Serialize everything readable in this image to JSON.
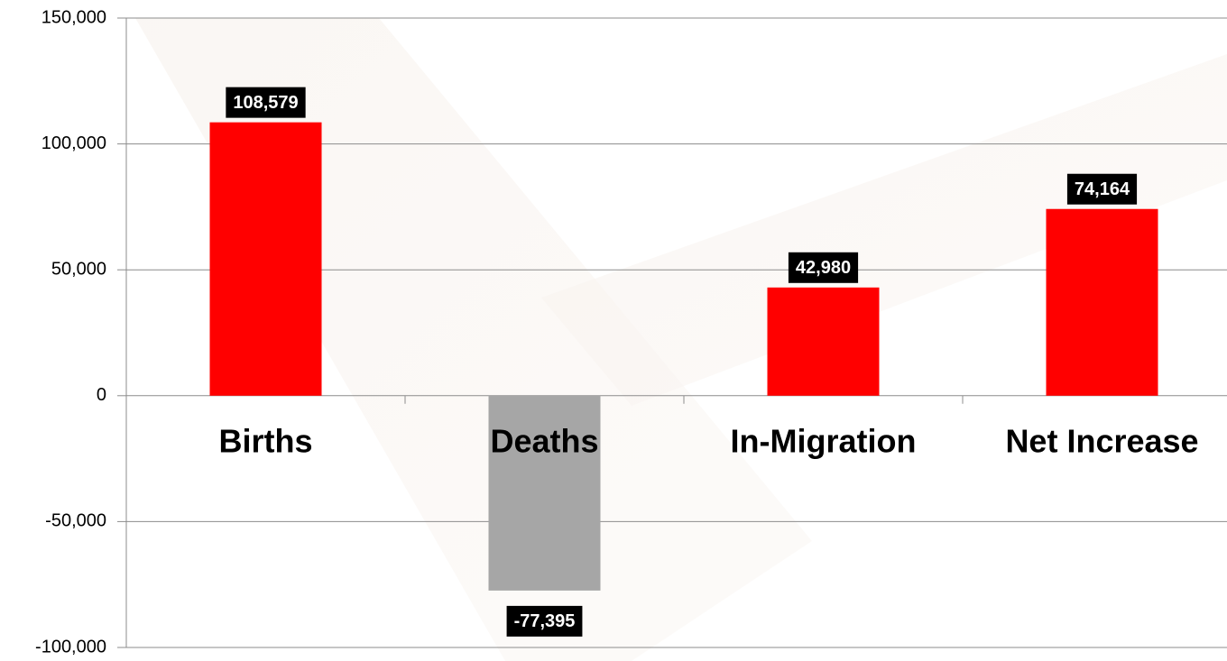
{
  "chart_data": {
    "type": "bar",
    "categories": [
      "Births",
      "Deaths",
      "In-Migration",
      "Net Increase"
    ],
    "values": [
      108579,
      -77395,
      42980,
      74164
    ],
    "value_labels": [
      "108,579",
      "-77,395",
      "42,980",
      "74,164"
    ],
    "colors": [
      "#ff0000",
      "#a6a6a6",
      "#ff0000",
      "#ff0000"
    ],
    "ylim": [
      -100000,
      150000
    ],
    "yticks": [
      {
        "value": -100000,
        "label": "-100,000"
      },
      {
        "value": -50000,
        "label": "-50,000"
      },
      0,
      {
        "value": 50000,
        "label": "50,000"
      },
      {
        "value": 100000,
        "label": "100,000"
      },
      {
        "value": 150000,
        "label": "150,000"
      }
    ],
    "grid": true
  }
}
